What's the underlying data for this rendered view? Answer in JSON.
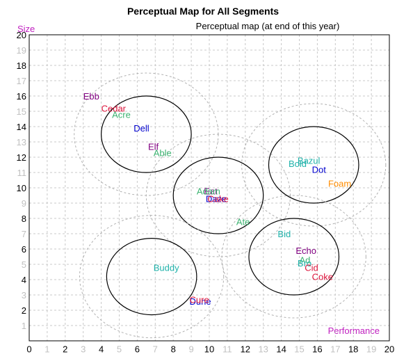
{
  "chart_data": {
    "type": "scatter",
    "title": "Perceptual Map for All Segments",
    "subtitle": "Perceptual map (at end of this year)",
    "xlabel": "Performance",
    "ylabel": "Size",
    "xlim": [
      0,
      20
    ],
    "ylim": [
      0,
      20
    ],
    "grid": true,
    "x_ticks": [
      "0",
      "1",
      "2",
      "3",
      "4",
      "5",
      "6",
      "7",
      "8",
      "9",
      "10",
      "11",
      "12",
      "13",
      "14",
      "15",
      "16",
      "17",
      "18",
      "19",
      "20"
    ],
    "y_ticks": [
      "0",
      "1",
      "2",
      "3",
      "4",
      "5",
      "6",
      "7",
      "8",
      "9",
      "10",
      "11",
      "12",
      "13",
      "14",
      "15",
      "16",
      "17",
      "18",
      "19",
      "20"
    ],
    "major_tick_color": "#000000",
    "minor_tick_color": "#c0c0c0",
    "xlabel_color": "#c020c0",
    "ylabel_color": "#c020c0",
    "segments": [
      {
        "cx": 6.5,
        "cy": 13.5,
        "r": 2.5,
        "outer_r": 4.0
      },
      {
        "cx": 10.5,
        "cy": 9.5,
        "r": 2.5,
        "outer_r": 4.0
      },
      {
        "cx": 15.8,
        "cy": 11.5,
        "r": 2.5,
        "outer_r": 4.0
      },
      {
        "cx": 14.7,
        "cy": 5.5,
        "r": 2.5,
        "outer_r": 4.0
      },
      {
        "cx": 6.8,
        "cy": 4.2,
        "r": 2.5,
        "outer_r": 4.0
      }
    ],
    "points": [
      {
        "name": "Ebb",
        "x": 3.0,
        "y": 16.0,
        "color": "#800080"
      },
      {
        "name": "Cedar",
        "x": 4.0,
        "y": 15.2,
        "color": "#dc143c"
      },
      {
        "name": "Acre",
        "x": 4.6,
        "y": 14.8,
        "color": "#3cb371"
      },
      {
        "name": "Dell",
        "x": 5.8,
        "y": 13.9,
        "color": "#0000cd"
      },
      {
        "name": "Elf",
        "x": 6.6,
        "y": 12.7,
        "color": "#800080"
      },
      {
        "name": "Able",
        "x": 6.9,
        "y": 12.3,
        "color": "#3cb371"
      },
      {
        "name": "Bold",
        "x": 14.4,
        "y": 11.6,
        "color": "#20b2aa"
      },
      {
        "name": "Bazul",
        "x": 14.9,
        "y": 11.8,
        "color": "#20b2aa"
      },
      {
        "name": "Dot",
        "x": 15.7,
        "y": 11.2,
        "color": "#0000cd"
      },
      {
        "name": "Foam",
        "x": 16.6,
        "y": 10.3,
        "color": "#ff8c00"
      },
      {
        "name": "Eat",
        "x": 9.7,
        "y": 9.8,
        "color": "#800080"
      },
      {
        "name": "Adam",
        "x": 9.3,
        "y": 9.8,
        "color": "#3cb371"
      },
      {
        "name": "Daze",
        "x": 9.8,
        "y": 9.3,
        "color": "#0000cd"
      },
      {
        "name": "Cake",
        "x": 9.9,
        "y": 9.3,
        "color": "#dc143c"
      },
      {
        "name": "Ate",
        "x": 11.5,
        "y": 7.8,
        "color": "#3cb371"
      },
      {
        "name": "Bid",
        "x": 13.8,
        "y": 7.0,
        "color": "#20b2aa"
      },
      {
        "name": "Echo",
        "x": 14.8,
        "y": 5.9,
        "color": "#800080"
      },
      {
        "name": "Ad",
        "x": 15.0,
        "y": 5.3,
        "color": "#3cb371"
      },
      {
        "name": "Bro",
        "x": 14.9,
        "y": 5.1,
        "color": "#20b2aa"
      },
      {
        "name": "Cid",
        "x": 15.3,
        "y": 4.8,
        "color": "#dc143c"
      },
      {
        "name": "Coke",
        "x": 15.7,
        "y": 4.2,
        "color": "#dc143c"
      },
      {
        "name": "Buddy",
        "x": 6.9,
        "y": 4.8,
        "color": "#20b2aa"
      },
      {
        "name": "Dune",
        "x": 8.9,
        "y": 2.6,
        "color": "#0000cd"
      },
      {
        "name": "Cure",
        "x": 8.9,
        "y": 2.7,
        "color": "#dc143c"
      }
    ]
  }
}
